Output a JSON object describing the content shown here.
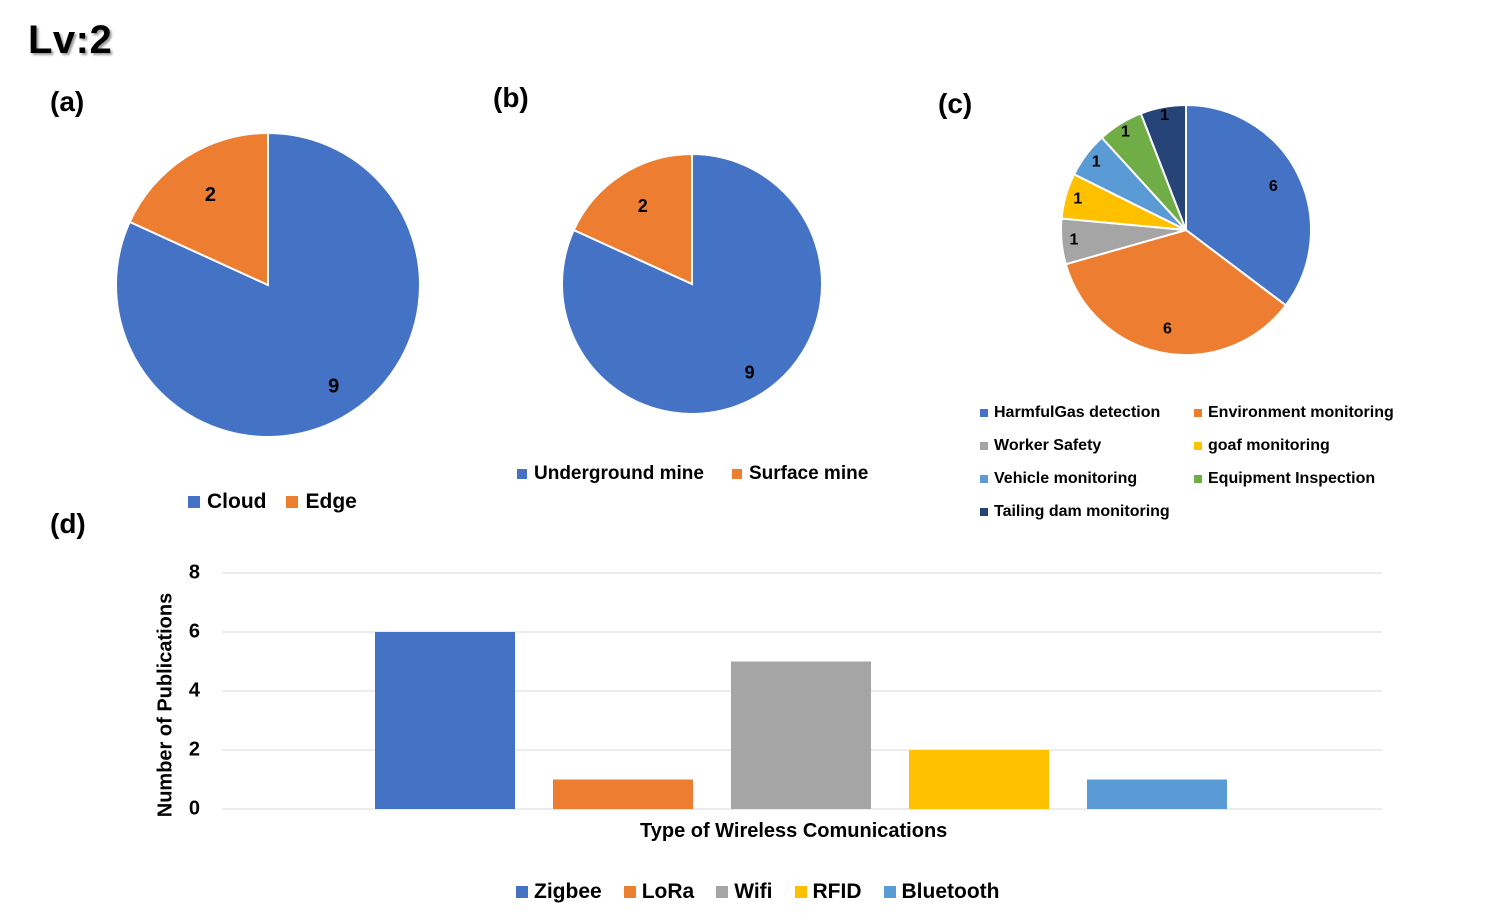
{
  "page_title": "Lv:2",
  "colors": {
    "blue": "#4472c4",
    "orange": "#ed7d31",
    "gray": "#a5a5a5",
    "yellow": "#ffc000",
    "lightblue": "#5b9bd5",
    "green": "#70ad47",
    "navy": "#264478",
    "grid": "#d9d9d9"
  },
  "chart_data": [
    {
      "id": "a",
      "panel_label": "(a)",
      "type": "pie",
      "categories": [
        "Cloud",
        "Edge"
      ],
      "values": [
        9,
        2
      ],
      "colors": [
        "#4472c4",
        "#ed7d31"
      ]
    },
    {
      "id": "b",
      "panel_label": "(b)",
      "type": "pie",
      "categories": [
        "Underground mine",
        "Surface mine"
      ],
      "values": [
        9,
        2
      ],
      "colors": [
        "#4472c4",
        "#ed7d31"
      ]
    },
    {
      "id": "c",
      "panel_label": "(c)",
      "type": "pie",
      "categories": [
        "HarmfulGas detection",
        "Environment monitoring",
        "Worker Safety",
        "goaf monitoring",
        "Vehicle monitoring",
        "Equipment Inspection",
        "Tailing dam monitoring"
      ],
      "values": [
        6,
        6,
        1,
        1,
        1,
        1,
        1
      ],
      "colors": [
        "#4472c4",
        "#ed7d31",
        "#a5a5a5",
        "#ffc000",
        "#5b9bd5",
        "#70ad47",
        "#264478"
      ]
    },
    {
      "id": "d",
      "panel_label": "(d)",
      "type": "bar",
      "categories": [
        "Zigbee",
        "LoRa",
        "Wifi",
        "RFID",
        "Bluetooth"
      ],
      "values": [
        6,
        1,
        5,
        2,
        1
      ],
      "colors": [
        "#4472c4",
        "#ed7d31",
        "#a5a5a5",
        "#ffc000",
        "#5b9bd5"
      ],
      "xlabel": "Type of Wireless Comunications",
      "ylabel": "Number of Publications",
      "ylim": [
        0,
        8
      ],
      "yticks": [
        "0",
        "2",
        "4",
        "6",
        "8"
      ],
      "grid": true,
      "legend": "bottom"
    }
  ]
}
